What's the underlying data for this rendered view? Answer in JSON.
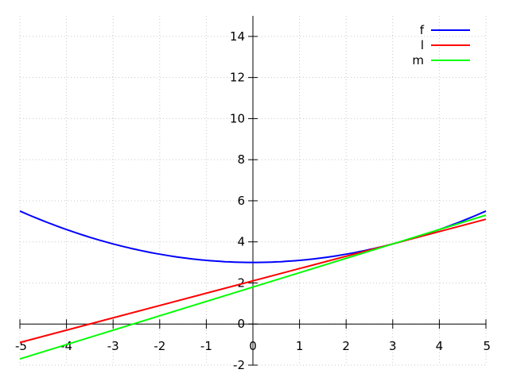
{
  "chart_data": {
    "type": "line",
    "x_ticks": [
      "-5",
      "-4",
      "-3",
      "-2",
      "-1",
      "0",
      "1",
      "2",
      "3",
      "4",
      "5"
    ],
    "y_ticks": [
      "-2",
      "0",
      "2",
      "4",
      "6",
      "8",
      "10",
      "12",
      "14"
    ],
    "xlim": [
      -5,
      5
    ],
    "ylim": [
      -2,
      15
    ],
    "grid": true,
    "legend_position": "top-right",
    "series": [
      {
        "name": "f",
        "color": "#0000ff",
        "x": [
          -5,
          -4,
          -3,
          -2,
          -1,
          0,
          1,
          2,
          3,
          4,
          5
        ],
        "y": [
          5.5,
          4.6,
          3.9,
          3.4,
          3.1,
          3.0,
          3.1,
          3.4,
          3.9,
          4.6,
          5.5
        ]
      },
      {
        "name": "l",
        "color": "#ff0000",
        "x": [
          -5,
          5
        ],
        "y": [
          -0.9,
          5.1
        ]
      },
      {
        "name": "m",
        "color": "#00ff00",
        "x": [
          -5,
          5
        ],
        "y": [
          -1.7,
          5.3
        ]
      }
    ]
  }
}
